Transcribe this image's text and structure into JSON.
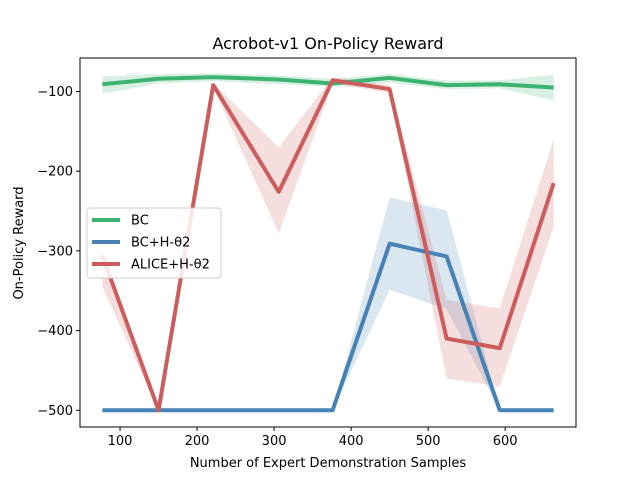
{
  "chart_data": {
    "type": "line",
    "title": "Acrobot-v1 On-Policy Reward",
    "xlabel": "Number of Expert Demonstration Samples",
    "ylabel": "On-Policy Reward",
    "xlim": [
      48,
      692
    ],
    "ylim": [
      -521,
      -58
    ],
    "xticks": [
      100,
      200,
      300,
      400,
      500,
      600
    ],
    "yticks": [
      -500,
      -400,
      -300,
      -200,
      -100
    ],
    "grid": false,
    "legend_position": "center-left",
    "x": [
      77,
      150,
      221,
      306,
      376,
      450,
      524,
      593,
      663
    ],
    "series": [
      {
        "name": "BC",
        "color": "#3cb371",
        "values": [
          -91,
          -84,
          -82,
          -85,
          -90,
          -83,
          -92,
          -91,
          -95
        ],
        "lower": [
          -103,
          -90,
          -87,
          -91,
          -94,
          -89,
          -97,
          -96,
          -111
        ],
        "upper": [
          -81,
          -78,
          -77,
          -80,
          -84,
          -78,
          -86,
          -86,
          -79
        ]
      },
      {
        "name": "BC+H-θ2",
        "color": "#4682b4",
        "values": [
          -500,
          -500,
          -500,
          -500,
          -500,
          -291,
          -307,
          -500,
          -500
        ],
        "lower": [
          -500,
          -500,
          -500,
          -500,
          -500,
          -349,
          -373,
          -500,
          -500
        ],
        "upper": [
          -500,
          -500,
          -500,
          -500,
          -500,
          -233,
          -249,
          -500,
          -500
        ]
      },
      {
        "name": "ALICE+H-θ2",
        "color": "#cd5c5c",
        "values": [
          -306,
          -500,
          -92,
          -226,
          -86,
          -97,
          -410,
          -422,
          -215
        ],
        "lower": [
          -345,
          -500,
          -95,
          -278,
          -90,
          -102,
          -460,
          -470,
          -270
        ],
        "upper": [
          -300,
          -500,
          -90,
          -170,
          -82,
          -92,
          -362,
          -372,
          -160
        ]
      }
    ]
  }
}
